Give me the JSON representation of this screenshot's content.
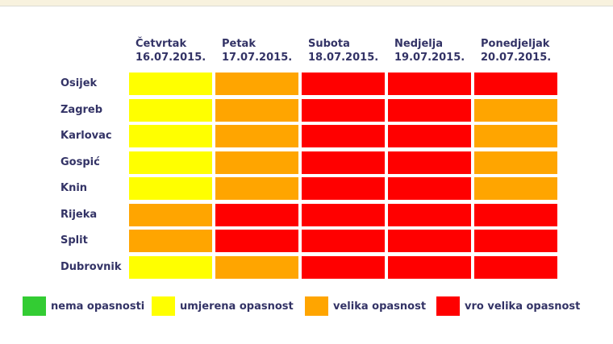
{
  "chart_data": {
    "type": "heatmap",
    "title": "",
    "columns": [
      {
        "day": "Četvrtak",
        "date": "16.07.2015."
      },
      {
        "day": "Petak",
        "date": "17.07.2015."
      },
      {
        "day": "Subota",
        "date": "18.07.2015."
      },
      {
        "day": "Nedjelja",
        "date": "19.07.2015."
      },
      {
        "day": "Ponedjeljak",
        "date": "20.07.2015."
      }
    ],
    "rows": [
      "Osijek",
      "Zagreb",
      "Karlovac",
      "Gospić",
      "Knin",
      "Rijeka",
      "Split",
      "Dubrovnik"
    ],
    "values": [
      [
        "umjerena",
        "velika",
        "vrlo_velika",
        "vrlo_velika",
        "vrlo_velika"
      ],
      [
        "umjerena",
        "velika",
        "vrlo_velika",
        "vrlo_velika",
        "velika"
      ],
      [
        "umjerena",
        "velika",
        "vrlo_velika",
        "vrlo_velika",
        "velika"
      ],
      [
        "umjerena",
        "velika",
        "vrlo_velika",
        "vrlo_velika",
        "velika"
      ],
      [
        "umjerena",
        "velika",
        "vrlo_velika",
        "vrlo_velika",
        "velika"
      ],
      [
        "velika",
        "vrlo_velika",
        "vrlo_velika",
        "vrlo_velika",
        "vrlo_velika"
      ],
      [
        "velika",
        "vrlo_velika",
        "vrlo_velika",
        "vrlo_velika",
        "vrlo_velika"
      ],
      [
        "umjerena",
        "velika",
        "vrlo_velika",
        "vrlo_velika",
        "vrlo_velika"
      ]
    ],
    "level_colors": {
      "nema": "#33CC33",
      "umjerena": "#FFFF00",
      "velika": "#FFA500",
      "vrlo_velika": "#FF0000"
    },
    "legend": [
      {
        "label": "nema opasnosti",
        "level": "nema"
      },
      {
        "label": "umjerena opasnost",
        "level": "umjerena"
      },
      {
        "label": "velika opasnost",
        "level": "velika"
      },
      {
        "label": "vro velika opasnost",
        "level": "vrlo_velika"
      }
    ],
    "legend_position": "bottom",
    "grid": "white-gaps"
  },
  "layout_colors": {
    "top_bar_bg": "#F8F2DE",
    "top_bar_border": "#DBDBD3",
    "text": "#333366",
    "background": "#FFFFFF"
  }
}
